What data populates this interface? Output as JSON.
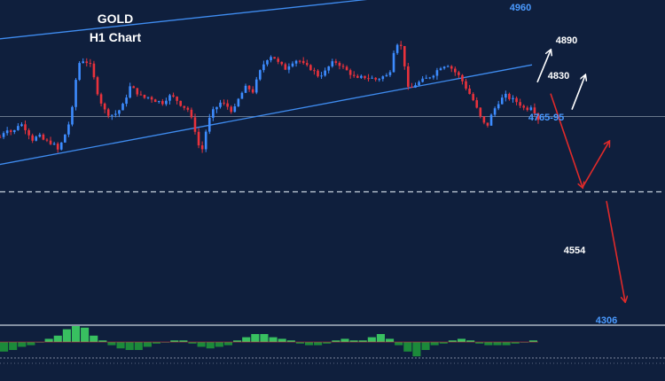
{
  "chart_data": {
    "type": "candlestick",
    "title": "GOLD",
    "subtitle": "H1 Chart",
    "colors": {
      "background": "#0f1f3d",
      "bull": "#3d8cff",
      "bear": "#e8323c",
      "channel": "#3f8cf0",
      "level": "#c9d3e0",
      "bull_arrow": "#ffffff",
      "bear_arrow": "#e02a2a",
      "hist_pos": "#38c060",
      "hist_neg": "#1c8a3a"
    },
    "levels": [
      {
        "label": "4960",
        "value": 4960,
        "color": "#4a9aff"
      },
      {
        "label": "4890",
        "value": 4890,
        "color": "#ffffff"
      },
      {
        "label": "4830",
        "value": 4830,
        "color": "#ffffff"
      },
      {
        "label": "4765-95",
        "value": 4780,
        "color": "#4a9aff"
      },
      {
        "label": "4554",
        "value": 4554,
        "color": "#ffffff"
      },
      {
        "label": "4306",
        "value": 4306,
        "color": "#4a9aff"
      }
    ],
    "horizontal_lines": [
      {
        "value": 4745,
        "style": "solid"
      },
      {
        "value": 4580,
        "style": "dashed"
      }
    ],
    "channel": {
      "upper": [
        {
          "x": 0,
          "y": 4915
        },
        {
          "x": 200,
          "y": 5040
        }
      ],
      "lower": [
        {
          "x": 0,
          "y": 4640
        },
        {
          "x": 200,
          "y": 4858
        }
      ]
    },
    "price_path": [
      4700,
      4720,
      4708,
      4732,
      4718,
      4695,
      4702,
      4690,
      4688,
      4670,
      4705,
      4745,
      4860,
      4870,
      4855,
      4800,
      4760,
      4748,
      4752,
      4770,
      4810,
      4800,
      4785,
      4788,
      4780,
      4775,
      4790,
      4785,
      4770,
      4760,
      4720,
      4660,
      4730,
      4760,
      4775,
      4768,
      4755,
      4790,
      4810,
      4800,
      4840,
      4870,
      4880,
      4860,
      4850,
      4865,
      4870,
      4855,
      4850,
      4835,
      4840,
      4860,
      4865,
      4850,
      4840,
      4825,
      4832,
      4830,
      4826,
      4832,
      4835,
      4910,
      4895,
      4800,
      4815,
      4822,
      4830,
      4840,
      4855,
      4860,
      4845,
      4830,
      4805,
      4780,
      4745,
      4720,
      4755,
      4780,
      4790,
      4782,
      4775,
      4760,
      4770,
      4740
    ],
    "forecast_arrows": [
      {
        "from": {
          "x": 202,
          "y": 4820
        },
        "to": {
          "x": 207,
          "y": 4890
        },
        "kind": "bull"
      },
      {
        "from": {
          "x": 215,
          "y": 4760
        },
        "to": {
          "x": 220,
          "y": 4835
        },
        "kind": "bull"
      },
      {
        "from": {
          "x": 207,
          "y": 4795
        },
        "to": {
          "x": 219,
          "y": 4590
        },
        "kind": "bear"
      },
      {
        "from": {
          "x": 219,
          "y": 4590
        },
        "to": {
          "x": 229,
          "y": 4690
        },
        "kind": "bull_red"
      },
      {
        "from": {
          "x": 228,
          "y": 4560
        },
        "to": {
          "x": 235,
          "y": 4340
        },
        "kind": "bear"
      }
    ],
    "x_range": [
      0,
      250
    ],
    "y_range": [
      4290,
      5000
    ],
    "indicator": {
      "type": "histogram",
      "values": [
        -0.6,
        -0.5,
        -0.3,
        -0.2,
        0,
        0.2,
        0.4,
        0.8,
        1.0,
        0.9,
        0.4,
        0.1,
        -0.2,
        -0.4,
        -0.5,
        -0.5,
        -0.3,
        -0.1,
        0,
        0.1,
        0.1,
        -0.1,
        -0.3,
        -0.4,
        -0.3,
        -0.2,
        0.1,
        0.3,
        0.5,
        0.5,
        0.3,
        0.2,
        0.1,
        -0.1,
        -0.2,
        -0.2,
        -0.1,
        0.1,
        0.2,
        0.1,
        0.1,
        0.3,
        0.5,
        0.2,
        -0.2,
        -0.6,
        -0.9,
        -0.5,
        -0.2,
        -0.1,
        0.1,
        0.2,
        0.1,
        -0.1,
        -0.2,
        -0.2,
        -0.2,
        -0.1,
        0,
        0.1
      ],
      "range": [
        -1,
        1
      ]
    }
  }
}
